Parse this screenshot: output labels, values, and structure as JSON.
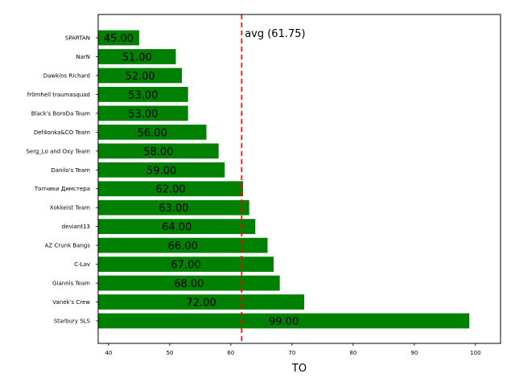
{
  "chart_data": {
    "type": "bar",
    "orientation": "horizontal",
    "categories": [
      "SPARTAN",
      "NarN",
      "Dawkins Richard",
      "fr0mhell traumasquad",
      "Black's BoroDa Team",
      "Def4onka&CO Team",
      "Serg_Lo and Oxy Team",
      "Danilo's Team",
      "Топчики Димстера",
      "Xokkeist Team",
      "deviant13",
      "AZ Crunk Bangs",
      "C-Lav",
      "Giannis Team",
      "Vanek's Crew",
      "Starbury SLS"
    ],
    "values": [
      45,
      51,
      52,
      53,
      53,
      56,
      58,
      59,
      62,
      63,
      64,
      66,
      67,
      68,
      72,
      99
    ],
    "value_labels": [
      "45.00",
      "51.00",
      "52.00",
      "53.00",
      "53.00",
      "56.00",
      "58.00",
      "59.00",
      "62.00",
      "63.00",
      "64.00",
      "66.00",
      "67.00",
      "68.00",
      "72.00",
      "99.00"
    ],
    "xlabel": "TO",
    "ylabel": "",
    "xlim": [
      38.3,
      104.1
    ],
    "xticks": [
      40,
      50,
      60,
      70,
      80,
      90,
      100
    ],
    "average": 61.75,
    "average_label": "avg (61.75)",
    "bar_color": "#008000",
    "average_line_color": "#ff0000",
    "grid": false
  }
}
